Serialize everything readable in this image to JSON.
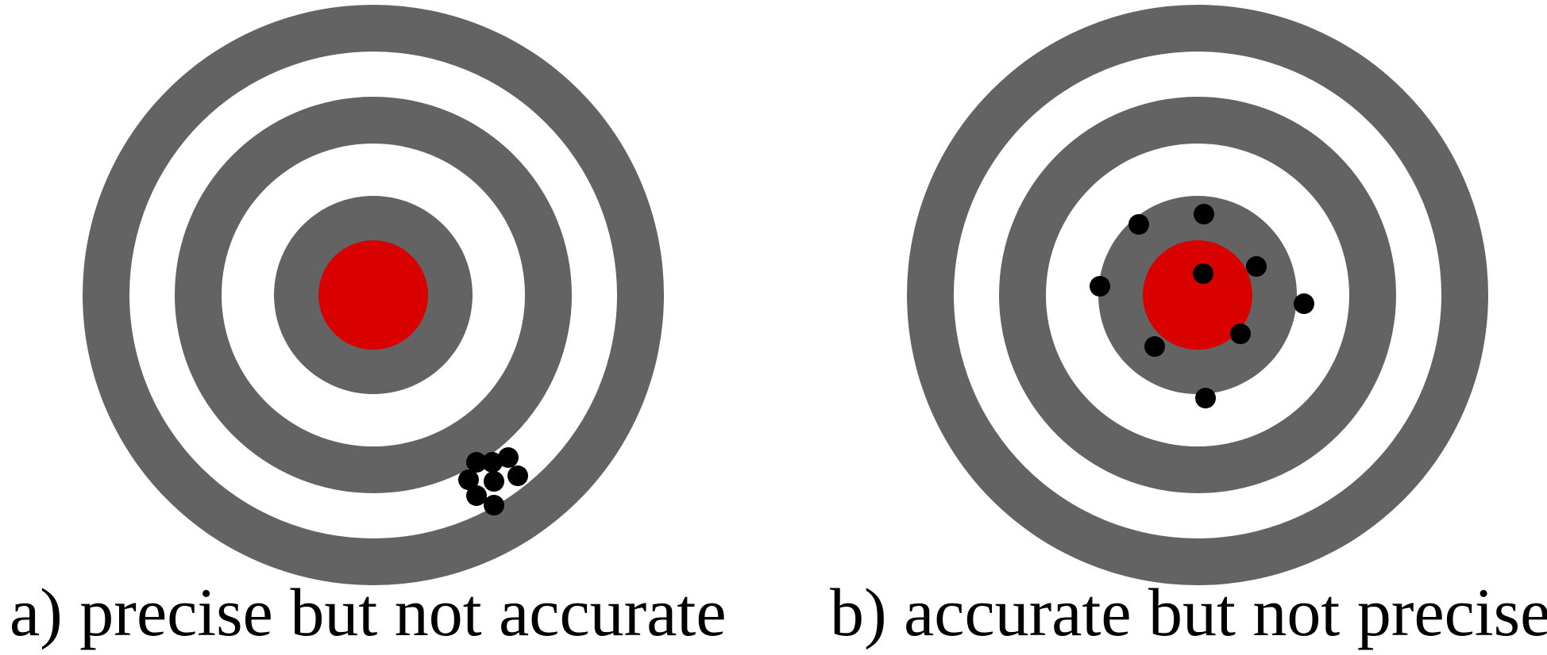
{
  "colors": {
    "ring_dark": "#636363",
    "ring_light": "#ffffff",
    "bullseye": "#d90000",
    "hit": "#000000"
  },
  "panels": [
    {
      "id": "a",
      "caption": "a) precise but not accurate"
    },
    {
      "id": "b",
      "caption": "b) accurate but not precise"
    }
  ]
}
